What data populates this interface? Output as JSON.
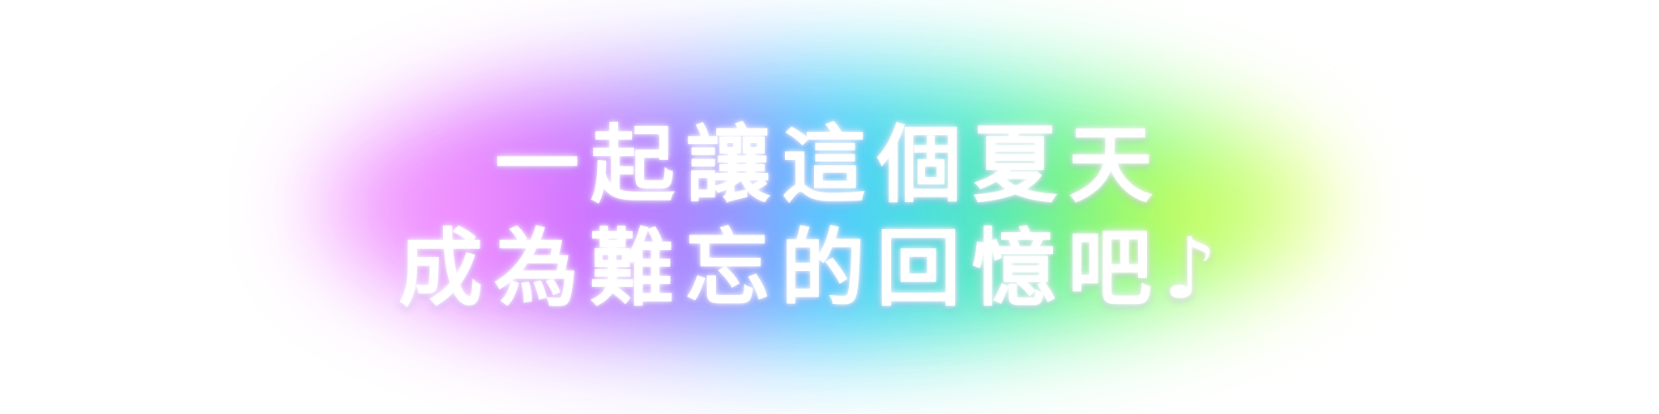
{
  "headline": {
    "line1": "一起讓這個夏天",
    "line2": "成為難忘的回憶吧♪"
  },
  "colors": {
    "glow_gradient": [
      "#f9a8ff",
      "#e27cff",
      "#b99cff",
      "#67d9ff",
      "#6ff2d1",
      "#9eff9a",
      "#efff6a"
    ],
    "text": "#ffffff",
    "background": "#ffffff"
  }
}
